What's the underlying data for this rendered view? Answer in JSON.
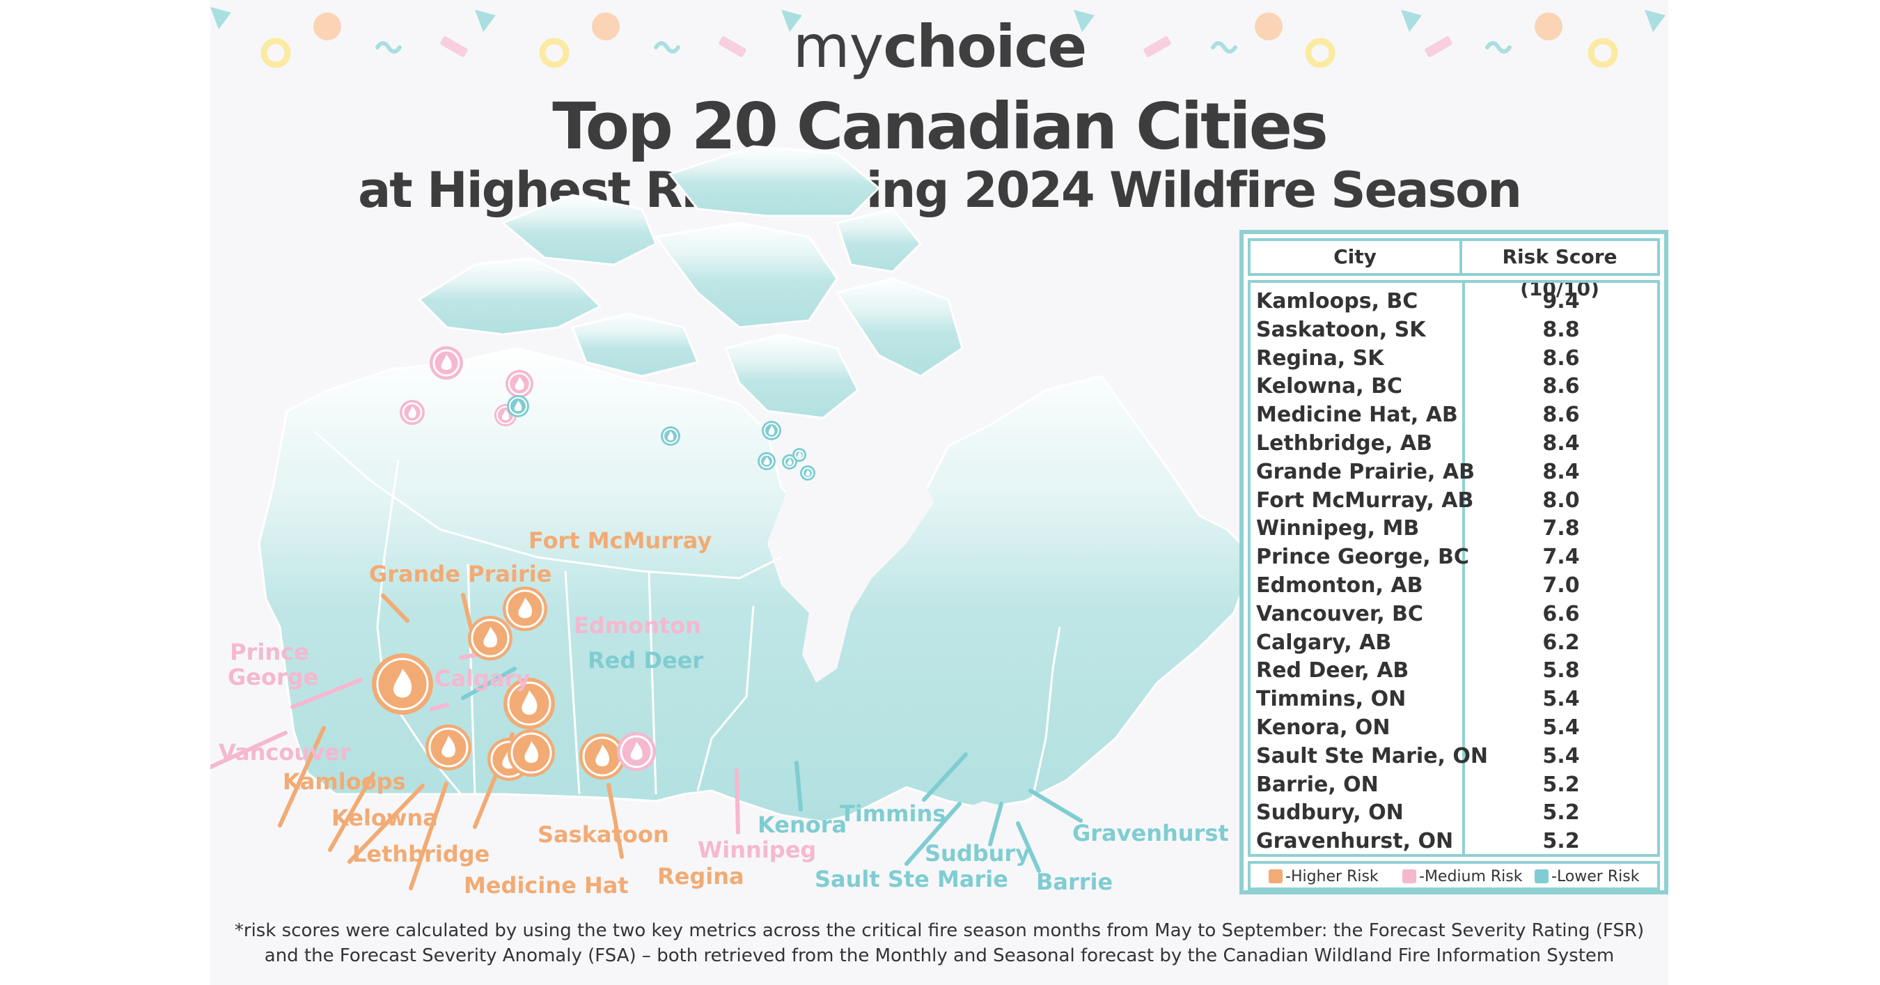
{
  "brand": {
    "part1": "my",
    "part2": "choice"
  },
  "title": {
    "line1": "Top 20 Canadian Cities",
    "line2": "at Highest Risk During 2024 Wildfire Season"
  },
  "colors": {
    "higher": "#f2ab74",
    "medium": "#f5b8cf",
    "lower": "#7fcdd2",
    "land": "#bfe6e6",
    "table_border": "#8fd0d3",
    "text": "#3d3d3d"
  },
  "table": {
    "header_city": "City",
    "header_score": "Risk Score (10/10)",
    "rows": [
      {
        "city": "Kamloops, BC",
        "score": "9.4"
      },
      {
        "city": "Saskatoon, SK",
        "score": "8.8"
      },
      {
        "city": "Regina, SK",
        "score": "8.6"
      },
      {
        "city": "Kelowna, BC",
        "score": "8.6"
      },
      {
        "city": "Medicine Hat, AB",
        "score": "8.6"
      },
      {
        "city": "Lethbridge, AB",
        "score": "8.4"
      },
      {
        "city": "Grande Prairie, AB",
        "score": "8.4"
      },
      {
        "city": "Fort McMurray, AB",
        "score": "8.0"
      },
      {
        "city": "Winnipeg, MB",
        "score": "7.8"
      },
      {
        "city": "Prince George, BC",
        "score": "7.4"
      },
      {
        "city": "Edmonton, AB",
        "score": "7.0"
      },
      {
        "city": "Vancouver, BC",
        "score": "6.6"
      },
      {
        "city": "Calgary, AB",
        "score": "6.2"
      },
      {
        "city": "Red Deer, AB",
        "score": "5.8"
      },
      {
        "city": "Timmins, ON",
        "score": "5.4"
      },
      {
        "city": "Kenora, ON",
        "score": "5.4"
      },
      {
        "city": "Sault Ste Marie, ON",
        "score": "5.4"
      },
      {
        "city": "Barrie, ON",
        "score": "5.2"
      },
      {
        "city": "Sudbury, ON",
        "score": "5.2"
      },
      {
        "city": "Gravenhurst, ON",
        "score": "5.2"
      }
    ]
  },
  "legend": {
    "higher": "-Higher Risk",
    "medium": "-Medium Risk",
    "lower": "-Lower Risk"
  },
  "map_labels": {
    "fort_mcmurray": "Fort McMurray",
    "grande_prairie": "Grande Prairie",
    "edmonton": "Edmonton",
    "red_deer": "Red Deer",
    "prince_george_1": "Prince",
    "prince_george_2": "George",
    "calgary": "Calgary",
    "vancouver": "Vancouver",
    "kamloops": "Kamloops",
    "kelowna": "Kelowna",
    "lethbridge": "Lethbridge",
    "medicine_hat": "Medicine Hat",
    "saskatoon": "Saskatoon",
    "regina": "Regina",
    "winnipeg": "Winnipeg",
    "kenora": "Kenora",
    "timmins": "Timmins",
    "sault_ste_marie": "Sault Ste Marie",
    "sudbury": "Sudbury",
    "barrie": "Barrie",
    "gravenhurst": "Gravenhurst"
  },
  "markers": [
    {
      "city": "Kamloops",
      "risk": "higher",
      "icon": "flame-icon"
    },
    {
      "city": "Saskatoon",
      "risk": "higher",
      "icon": "flame-icon"
    },
    {
      "city": "Regina",
      "risk": "higher",
      "icon": "flame-icon"
    },
    {
      "city": "Kelowna",
      "risk": "higher",
      "icon": "flame-icon"
    },
    {
      "city": "Medicine Hat",
      "risk": "higher",
      "icon": "flame-icon"
    },
    {
      "city": "Lethbridge",
      "risk": "higher",
      "icon": "flame-icon"
    },
    {
      "city": "Grande Prairie",
      "risk": "higher",
      "icon": "flame-icon"
    },
    {
      "city": "Fort McMurray",
      "risk": "higher",
      "icon": "flame-icon"
    },
    {
      "city": "Winnipeg",
      "risk": "medium",
      "icon": "flame-icon"
    },
    {
      "city": "Prince George",
      "risk": "medium",
      "icon": "flame-icon"
    },
    {
      "city": "Edmonton",
      "risk": "medium",
      "icon": "flame-icon"
    },
    {
      "city": "Vancouver",
      "risk": "medium",
      "icon": "flame-icon"
    },
    {
      "city": "Calgary",
      "risk": "medium",
      "icon": "flame-icon"
    },
    {
      "city": "Red Deer",
      "risk": "lower",
      "icon": "flame-icon"
    },
    {
      "city": "Timmins",
      "risk": "lower",
      "icon": "flame-icon"
    },
    {
      "city": "Kenora",
      "risk": "lower",
      "icon": "flame-icon"
    },
    {
      "city": "Sault Ste Marie",
      "risk": "lower",
      "icon": "flame-icon"
    },
    {
      "city": "Barrie",
      "risk": "lower",
      "icon": "flame-icon"
    },
    {
      "city": "Sudbury",
      "risk": "lower",
      "icon": "flame-icon"
    },
    {
      "city": "Gravenhurst",
      "risk": "lower",
      "icon": "flame-icon"
    }
  ],
  "footnote": {
    "line1": "*risk scores were calculated by using the two key metrics across the critical fire season months from May to September: the Forecast Severity Rating (FSR)",
    "line2": "and the Forecast Severity Anomaly (FSA) – both retrieved from the Monthly and Seasonal forecast by the Canadian Wildland Fire Information System"
  }
}
